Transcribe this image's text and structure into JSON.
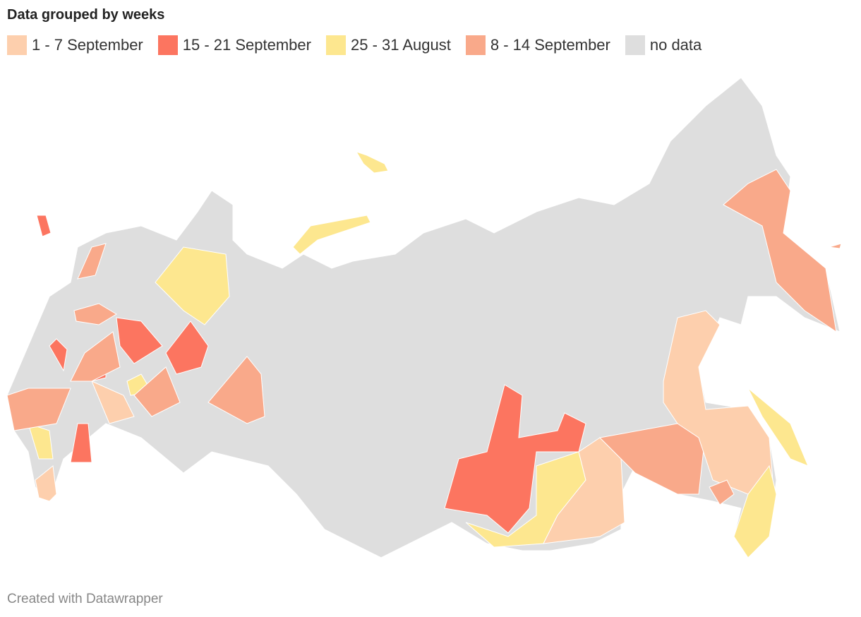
{
  "title": "Data grouped by weeks",
  "legend": [
    {
      "label": "1 - 7 September",
      "color": "#fdcfad"
    },
    {
      "label": "15 - 21 September",
      "color": "#fc7560"
    },
    {
      "label": "25 - 31 August",
      "color": "#fde78f"
    },
    {
      "label": "8 - 14 September",
      "color": "#f9a98a"
    },
    {
      "label": "no data",
      "color": "#dedede"
    }
  ],
  "footer": "Created with Datawrapper"
}
